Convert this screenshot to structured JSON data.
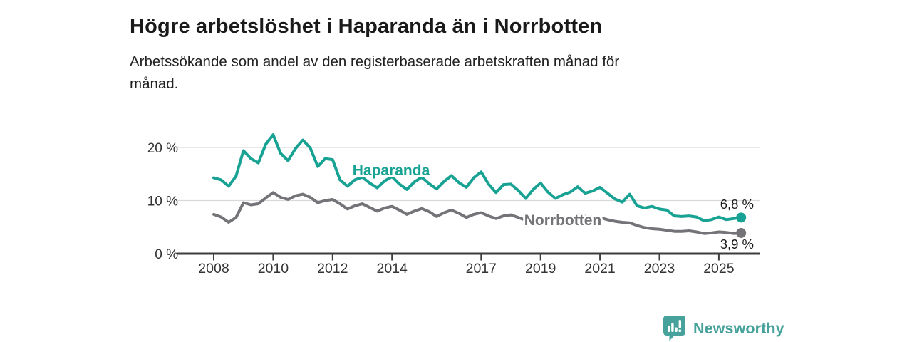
{
  "header": {
    "title": "Högre arbetslöshet i Haparanda än i Norrbotten",
    "subtitle_lines": [
      "Arbetssökande som andel av den registerbaserade arbetskraften månad för",
      "månad."
    ]
  },
  "chart_data": {
    "type": "line",
    "unit": "%",
    "x_start": 2008.0,
    "x_step": 0.25,
    "x_end": 2025.75,
    "x_ticks": [
      2008,
      2010,
      2012,
      2014,
      2017,
      2019,
      2021,
      2023,
      2025
    ],
    "y_ticks": [
      0,
      10,
      20
    ],
    "y_tick_labels": [
      "0 %",
      "10 %",
      "20 %"
    ],
    "ylim": [
      0,
      23
    ],
    "grid": "horizontal",
    "legend_position": "inline-labels",
    "series": [
      {
        "name": "Haparanda",
        "color": "#18a293",
        "end_label": "6,8 %",
        "end_value": 6.8,
        "values": [
          14.3,
          13.9,
          12.7,
          14.6,
          19.4,
          17.9,
          17.1,
          20.6,
          22.4,
          18.9,
          17.5,
          19.8,
          21.4,
          19.9,
          16.4,
          17.9,
          17.7,
          13.9,
          12.7,
          13.9,
          14.4,
          13.3,
          12.4,
          13.7,
          14.5,
          13.1,
          12.1,
          13.5,
          14.4,
          13.2,
          12.2,
          13.6,
          14.7,
          13.4,
          12.5,
          14.3,
          15.4,
          13.1,
          11.5,
          13.0,
          13.1,
          11.9,
          10.4,
          12.1,
          13.3,
          11.6,
          10.4,
          11.1,
          11.6,
          12.6,
          11.4,
          11.8,
          12.5,
          11.4,
          10.3,
          9.7,
          11.2,
          9.0,
          8.6,
          8.9,
          8.4,
          8.2,
          7.1,
          7.0,
          7.1,
          6.9,
          6.2,
          6.4,
          6.9,
          6.4,
          6.6,
          6.8
        ]
      },
      {
        "name": "Norrbotten",
        "color": "#747478",
        "end_label": "3,9 %",
        "end_value": 3.9,
        "values": [
          7.4,
          6.9,
          5.9,
          6.8,
          9.6,
          9.2,
          9.4,
          10.5,
          11.5,
          10.6,
          10.2,
          10.9,
          11.2,
          10.6,
          9.6,
          10.0,
          10.2,
          9.4,
          8.4,
          9.0,
          9.4,
          8.7,
          8.0,
          8.6,
          8.9,
          8.2,
          7.4,
          8.0,
          8.5,
          7.9,
          7.0,
          7.7,
          8.2,
          7.6,
          6.8,
          7.4,
          7.7,
          7.1,
          6.6,
          7.1,
          7.3,
          6.8,
          6.3,
          6.7,
          6.9,
          6.4,
          6.0,
          6.3,
          6.6,
          7.4,
          7.0,
          6.9,
          6.8,
          6.4,
          6.1,
          5.9,
          5.8,
          5.3,
          4.9,
          4.7,
          4.6,
          4.4,
          4.2,
          4.2,
          4.3,
          4.1,
          3.8,
          3.9,
          4.1,
          4.0,
          3.8,
          3.9
        ]
      }
    ]
  },
  "footer": {
    "brand": "Newsworthy"
  },
  "colors": {
    "grid": "#d9d9d9",
    "axis": "#3d3d3d",
    "tick_text": "#333333",
    "value_label": "#1a1a1a",
    "brand": "#46a29b"
  }
}
